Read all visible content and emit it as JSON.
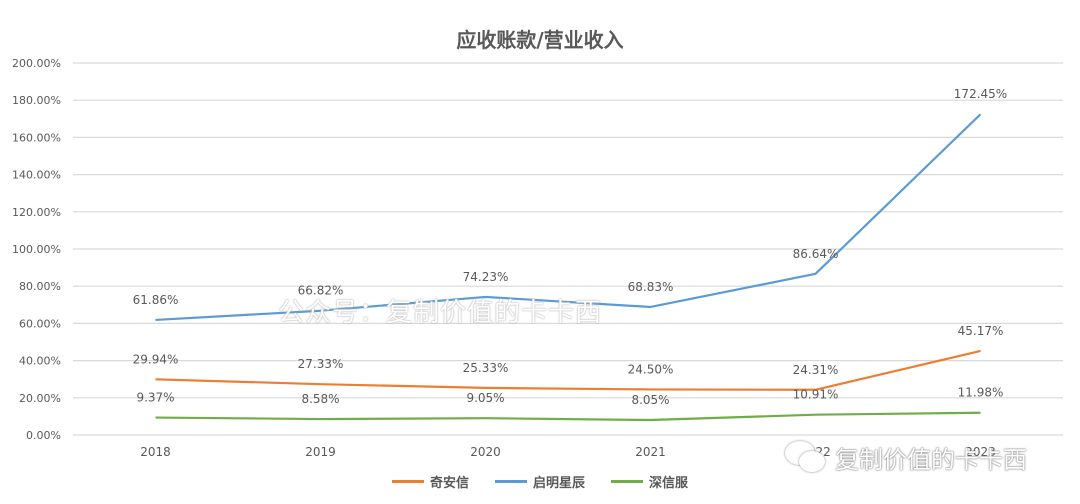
{
  "chart_data": {
    "type": "line",
    "title": "应收账款/营业收入",
    "xlabel": "",
    "ylabel": "",
    "categories": [
      "2018",
      "2019",
      "2020",
      "2021",
      "2022",
      "2023"
    ],
    "series": [
      {
        "name": "奇安信",
        "color": "#ED7D31",
        "values": [
          29.94,
          27.33,
          25.33,
          24.5,
          24.31,
          45.17
        ],
        "labels": [
          "29.94%",
          "27.33%",
          "25.33%",
          "24.50%",
          "24.31%",
          "45.17%"
        ]
      },
      {
        "name": "启明星辰",
        "color": "#5B9BD5",
        "values": [
          61.86,
          66.82,
          74.23,
          68.83,
          86.64,
          172.45
        ],
        "labels": [
          "61.86%",
          "66.82%",
          "74.23%",
          "68.83%",
          "86.64%",
          "172.45%"
        ]
      },
      {
        "name": "深信服",
        "color": "#70AD47",
        "values": [
          9.37,
          8.58,
          9.05,
          8.05,
          10.91,
          11.98
        ],
        "labels": [
          "9.37%",
          "8.58%",
          "9.05%",
          "8.05%",
          "10.91%",
          "11.98%"
        ]
      }
    ],
    "ylim": [
      0,
      200
    ],
    "yticks": [
      "0.00%",
      "20.00%",
      "40.00%",
      "60.00%",
      "80.00%",
      "100.00%",
      "120.00%",
      "140.00%",
      "160.00%",
      "180.00%",
      "200.00%"
    ],
    "grid": true,
    "legend_position": "bottom"
  },
  "watermarks": {
    "center": "公众号：复制价值的卡卡西",
    "corner": "复制价值的卡卡西",
    "corner_icon": "wechat-icon"
  }
}
